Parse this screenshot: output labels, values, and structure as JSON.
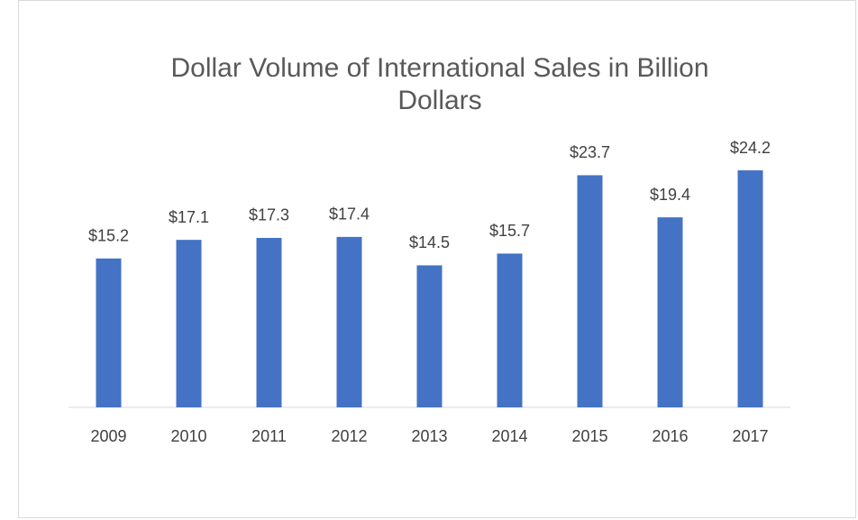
{
  "chart_data": {
    "type": "bar",
    "title": "Dollar Volume of International Sales in Billion Dollars",
    "categories": [
      "2009",
      "2010",
      "2011",
      "2012",
      "2013",
      "2014",
      "2015",
      "2016",
      "2017"
    ],
    "values": [
      15.2,
      17.1,
      17.3,
      17.4,
      14.5,
      15.7,
      23.7,
      19.4,
      24.2
    ],
    "value_labels": [
      "$15.2",
      "$17.1",
      "$17.3",
      "$17.4",
      "$14.5",
      "$15.7",
      "$23.7",
      "$19.4",
      "$24.2"
    ],
    "color": "#4472c4"
  }
}
